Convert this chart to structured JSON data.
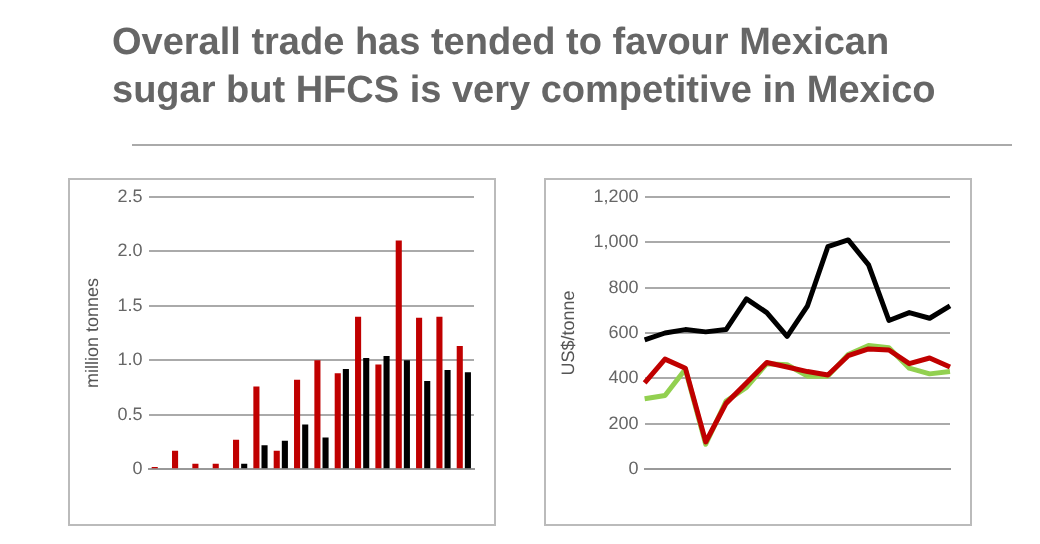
{
  "chart_data": [
    {
      "type": "bar",
      "title": "Overall trade has tended to favour Mexican sugar but HFCS is very competitive in Mexico",
      "ylabel": "million tonnes",
      "categories": [
        null,
        null,
        null,
        null,
        null,
        null,
        null,
        null,
        null,
        null,
        null,
        null,
        null,
        null,
        null,
        null
      ],
      "series": [
        {
          "color": "#c00000",
          "values": [
            0.02,
            0.17,
            0.05,
            0.05,
            0.27,
            0.76,
            0.17,
            0.82,
            1.0,
            0.88,
            1.4,
            0.96,
            2.1,
            1.39,
            1.4,
            1.13
          ]
        },
        {
          "color": "#000000",
          "values": [
            null,
            null,
            null,
            null,
            0.05,
            0.22,
            0.26,
            0.41,
            0.29,
            0.92,
            1.02,
            1.04,
            1.0,
            0.81,
            0.91,
            0.89
          ]
        }
      ],
      "ylim": [
        0,
        2.5
      ],
      "yticks": [
        0,
        0.5,
        {
          "value": 1,
          "label": "1.0"
        },
        1.5,
        {
          "value": 2,
          "label": "2.0"
        },
        2.5
      ],
      "grid": "y",
      "legend": false
    },
    {
      "type": "line",
      "ylabel": "US$/tonne",
      "categories": [
        null,
        null,
        null,
        null,
        null,
        null,
        null,
        null,
        null,
        null,
        null,
        null,
        null,
        null,
        null,
        null
      ],
      "series": [
        {
          "color": "#000000",
          "values": [
            570,
            600,
            615,
            605,
            615,
            750,
            690,
            585,
            720,
            980,
            1010,
            900,
            655,
            690,
            665,
            720
          ]
        },
        {
          "color": "#c00000",
          "values": [
            380,
            485,
            445,
            120,
            290,
            380,
            470,
            450,
            430,
            415,
            500,
            530,
            525,
            465,
            490,
            450
          ]
        },
        {
          "color": "#92d050",
          "values": [
            310,
            325,
            440,
            110,
            300,
            360,
            465,
            460,
            410,
            410,
            505,
            545,
            535,
            445,
            420,
            430
          ]
        }
      ],
      "ylim": [
        0,
        1200
      ],
      "yticks": [
        0,
        200,
        400,
        600,
        800,
        {
          "value": 1000,
          "label": "1,000"
        },
        {
          "value": 1200,
          "label": "1,200"
        }
      ],
      "grid": "y",
      "legend": false,
      "marker": "none"
    }
  ]
}
